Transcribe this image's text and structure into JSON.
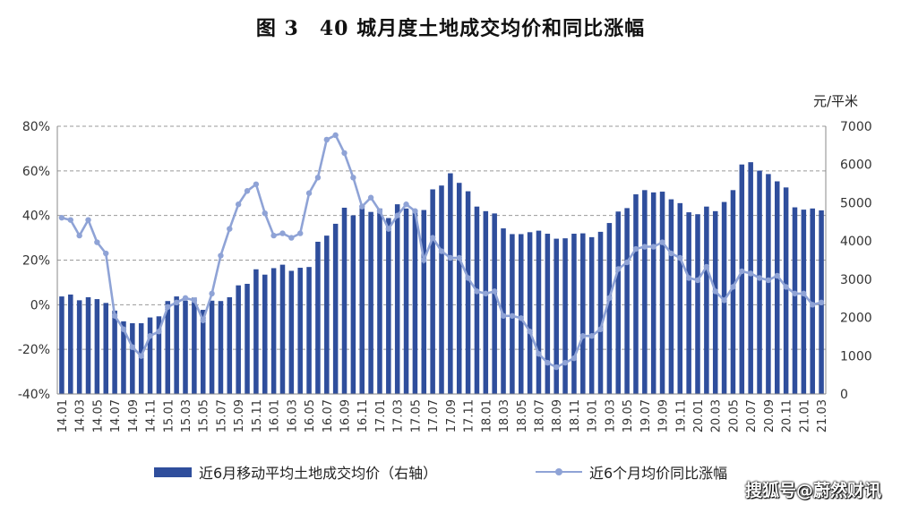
{
  "title": "图 3　40 城月度土地成交均价和同比涨幅",
  "chart_data": {
    "type": "bar+line",
    "title": "图 3　40 城月度土地成交均价和同比涨幅",
    "y_left": {
      "ticks": [
        "-40%",
        "-20%",
        "0%",
        "20%",
        "40%",
        "60%",
        "80%"
      ],
      "range": [
        -40,
        80
      ]
    },
    "y_right": {
      "unit": "元/平米",
      "ticks": [
        "0",
        "1000",
        "2000",
        "3000",
        "4000",
        "5000",
        "6000",
        "7000"
      ],
      "range": [
        0,
        7000
      ]
    },
    "x_tick_labels": [
      "14.01",
      "14.03",
      "14.05",
      "14.07",
      "14.09",
      "14.11",
      "15.01",
      "15.03",
      "15.05",
      "15.07",
      "15.09",
      "15.11",
      "16.01",
      "16.03",
      "16.05",
      "16.07",
      "16.09",
      "16.11",
      "17.01",
      "17.03",
      "17.05",
      "17.07",
      "17.09",
      "17.11",
      "18.01",
      "18.03",
      "18.05",
      "18.07",
      "18.09",
      "18.11",
      "19.01",
      "19.03",
      "19.05",
      "19.07",
      "19.09",
      "19.11",
      "20.01",
      "20.03",
      "20.05",
      "20.07",
      "20.09",
      "20.11",
      "21.01",
      "21.03"
    ],
    "categories": [
      "14.01",
      "14.02",
      "14.03",
      "14.04",
      "14.05",
      "14.06",
      "14.07",
      "14.08",
      "14.09",
      "14.10",
      "14.11",
      "14.12",
      "15.01",
      "15.02",
      "15.03",
      "15.04",
      "15.05",
      "15.06",
      "15.07",
      "15.08",
      "15.09",
      "15.10",
      "15.11",
      "15.12",
      "16.01",
      "16.02",
      "16.03",
      "16.04",
      "16.05",
      "16.06",
      "16.07",
      "16.08",
      "16.09",
      "16.10",
      "16.11",
      "16.12",
      "17.01",
      "17.02",
      "17.03",
      "17.04",
      "17.05",
      "17.06",
      "17.07",
      "17.08",
      "17.09",
      "17.10",
      "17.11",
      "17.12",
      "18.01",
      "18.02",
      "18.03",
      "18.04",
      "18.05",
      "18.06",
      "18.07",
      "18.08",
      "18.09",
      "18.10",
      "18.11",
      "18.12",
      "19.01",
      "19.02",
      "19.03",
      "19.04",
      "19.05",
      "19.06",
      "19.07",
      "19.08",
      "19.09",
      "19.10",
      "19.11",
      "19.12",
      "20.01",
      "20.02",
      "20.03",
      "20.04",
      "20.05",
      "20.06",
      "20.07",
      "20.08",
      "20.09",
      "20.10",
      "20.11",
      "20.12",
      "21.01",
      "21.02",
      "21.03"
    ],
    "series": [
      {
        "name": "近6月移动平均土地成交均价（右轴）",
        "kind": "bar",
        "axis": "right",
        "color": "#2F4E9C",
        "values": [
          2550,
          2600,
          2450,
          2530,
          2480,
          2380,
          2180,
          1900,
          1850,
          1850,
          2000,
          2030,
          2430,
          2550,
          2440,
          2520,
          2200,
          2440,
          2430,
          2530,
          2840,
          2880,
          3260,
          3120,
          3290,
          3380,
          3220,
          3300,
          3320,
          3980,
          4140,
          4450,
          4870,
          4670,
          4870,
          4760,
          4850,
          4600,
          4960,
          4850,
          4800,
          4810,
          5350,
          5450,
          5770,
          5520,
          5300,
          4900,
          4780,
          4720,
          4330,
          4180,
          4180,
          4230,
          4270,
          4190,
          4060,
          4070,
          4190,
          4200,
          4100,
          4240,
          4470,
          4770,
          4860,
          5220,
          5330,
          5270,
          5290,
          5090,
          4990,
          4750,
          4700,
          4900,
          4780,
          5020,
          5330,
          6000,
          6060,
          5840,
          5750,
          5560,
          5400,
          4880,
          4820,
          4850,
          4800
        ]
      },
      {
        "name": "近6个月均价同比涨幅",
        "kind": "line",
        "axis": "left",
        "color": "#8FA3D6",
        "values": [
          39,
          38,
          31,
          38,
          28,
          23,
          -5,
          -11,
          -19,
          -23,
          -14,
          -12,
          -1,
          1,
          3,
          2,
          -7,
          5,
          22,
          34,
          45,
          51,
          54,
          41,
          31,
          32,
          30,
          32,
          50,
          57,
          74,
          76,
          68,
          57,
          44,
          48,
          42,
          34,
          40,
          45,
          42,
          20,
          30,
          24,
          21,
          21,
          12,
          6,
          5,
          6,
          -5,
          -5,
          -6,
          -12,
          -22,
          -26,
          -28,
          -26,
          -24,
          -14,
          -14,
          -11,
          3,
          16,
          19,
          25,
          26,
          26,
          28,
          23,
          21,
          12,
          11,
          17,
          6,
          2,
          8,
          15,
          14,
          12,
          11,
          13,
          8,
          5,
          5,
          0,
          1
        ]
      }
    ],
    "legend_position": "bottom"
  },
  "legend": {
    "bar_label": "近6月移动平均土地成交均价（右轴）",
    "line_label": "近6个月均价同比涨幅"
  },
  "watermark": "搜狐号@蔚然财讯"
}
